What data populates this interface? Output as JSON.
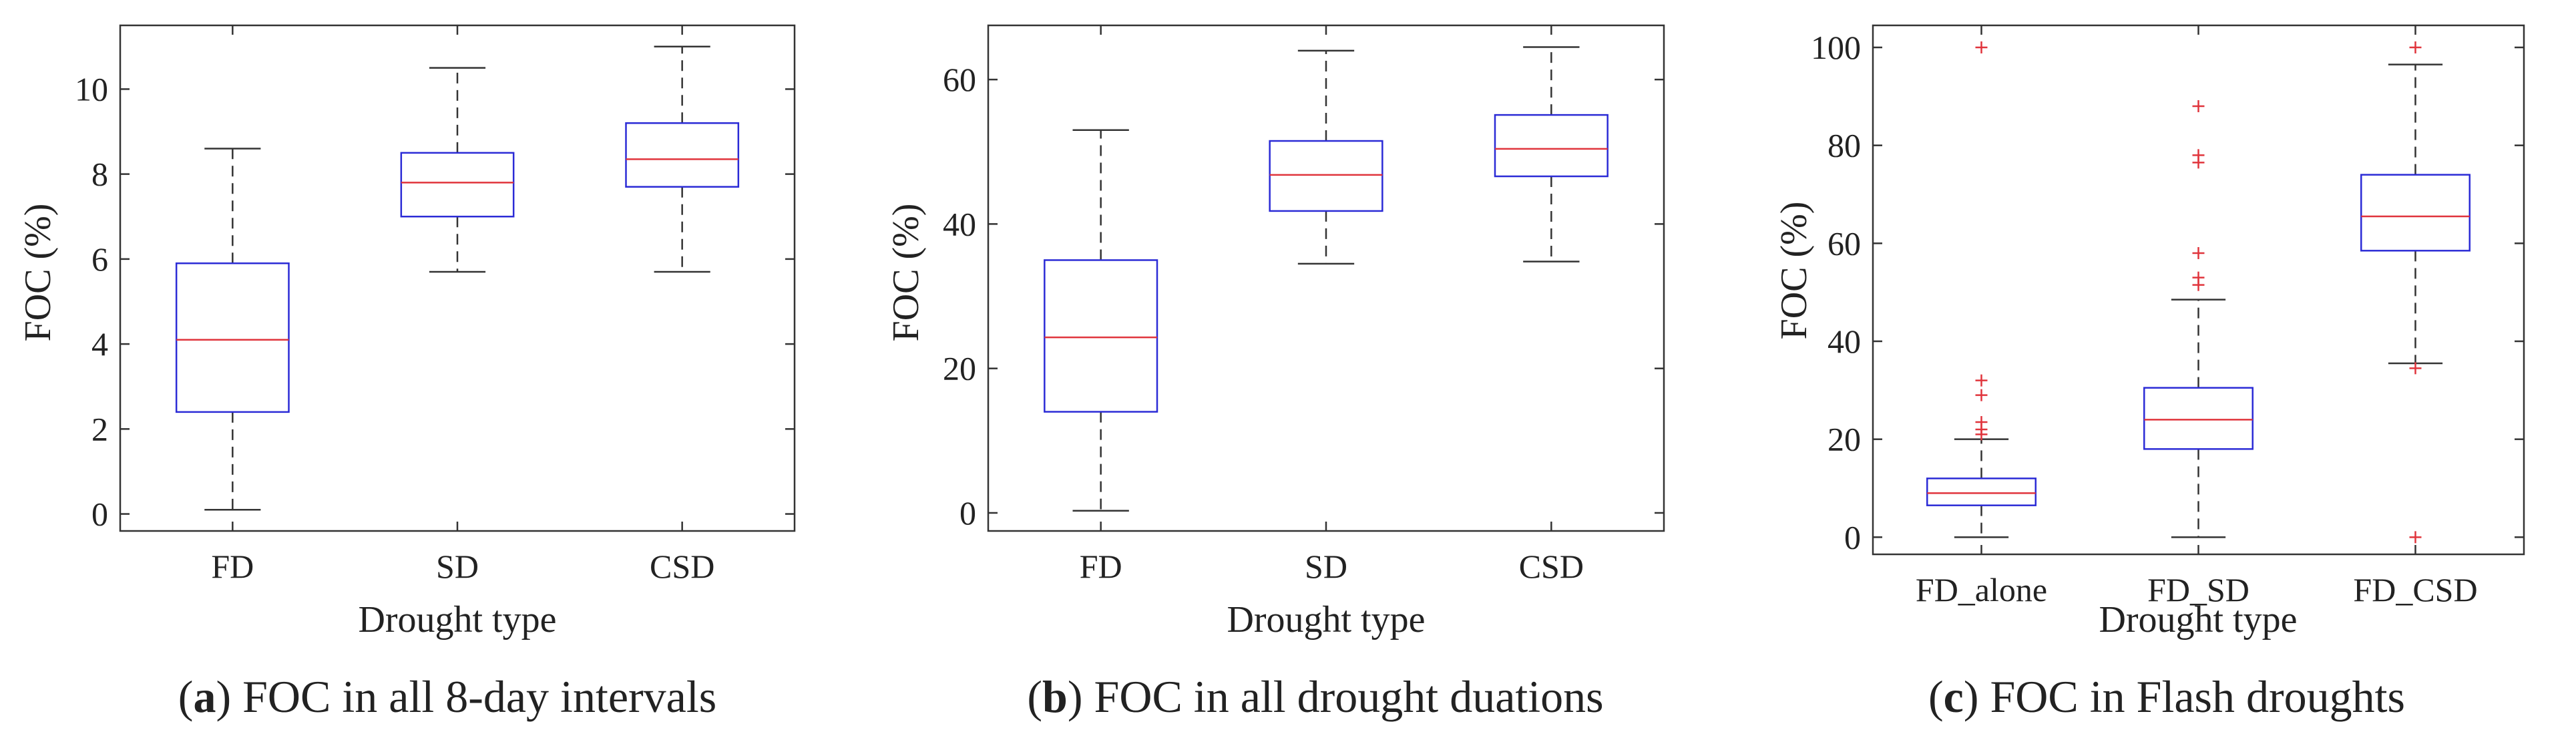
{
  "chart_data": [
    {
      "type": "box",
      "panel_letter": "a",
      "caption": "FOC in all 8-day intervals",
      "xlabel": "Drought type",
      "ylabel": "FOC (%)",
      "ylim": [
        -0.4,
        11.5
      ],
      "yticks": [
        0,
        2,
        4,
        6,
        8,
        10
      ],
      "categories": [
        "FD",
        "SD",
        "CSD"
      ],
      "boxes": [
        {
          "min": 0.1,
          "q1": 2.4,
          "median": 4.1,
          "q3": 5.9,
          "max": 8.6,
          "outliers": []
        },
        {
          "min": 5.7,
          "q1": 7.0,
          "median": 7.8,
          "q3": 8.5,
          "max": 10.5,
          "outliers": []
        },
        {
          "min": 5.7,
          "q1": 7.7,
          "median": 8.35,
          "q3": 9.2,
          "max": 11.0,
          "outliers": []
        }
      ]
    },
    {
      "type": "box",
      "panel_letter": "b",
      "caption": "FOC in all drought duations",
      "xlabel": "Drought type",
      "ylabel": "FOC (%)",
      "ylim": [
        -2.5,
        67.5
      ],
      "yticks": [
        0,
        20,
        40,
        60
      ],
      "categories": [
        "FD",
        "SD",
        "CSD"
      ],
      "boxes": [
        {
          "min": 0.3,
          "q1": 14.0,
          "median": 24.3,
          "q3": 35.0,
          "max": 53.0,
          "outliers": []
        },
        {
          "min": 34.5,
          "q1": 41.8,
          "median": 46.8,
          "q3": 51.5,
          "max": 64.0,
          "outliers": []
        },
        {
          "min": 34.8,
          "q1": 46.6,
          "median": 50.4,
          "q3": 55.1,
          "max": 64.5,
          "outliers": []
        }
      ]
    },
    {
      "type": "box",
      "panel_letter": "c",
      "caption": "FOC in Flash droughts",
      "xlabel": "Drought type",
      "ylabel": "FOC (%)",
      "ylim": [
        -3.5,
        104.5
      ],
      "yticks": [
        0,
        20,
        40,
        60,
        80,
        100
      ],
      "categories": [
        "FD_alone",
        "FD_SD",
        "FD_CSD"
      ],
      "boxes": [
        {
          "min": 0,
          "q1": 6.5,
          "median": 9.0,
          "q3": 12.0,
          "max": 20.0,
          "outliers": [
            21.0,
            22.0,
            23.5,
            29.0,
            32.0,
            100.0
          ]
        },
        {
          "min": 0,
          "q1": 18.0,
          "median": 24.0,
          "q3": 30.5,
          "max": 48.5,
          "outliers": [
            51.5,
            53.0,
            58.0,
            76.5,
            78.0,
            88.0
          ]
        },
        {
          "min": 35.5,
          "q1": 58.5,
          "median": 65.5,
          "q3": 74.0,
          "max": 96.5,
          "outliers": [
            0.0,
            34.5,
            100.0
          ]
        }
      ]
    }
  ]
}
